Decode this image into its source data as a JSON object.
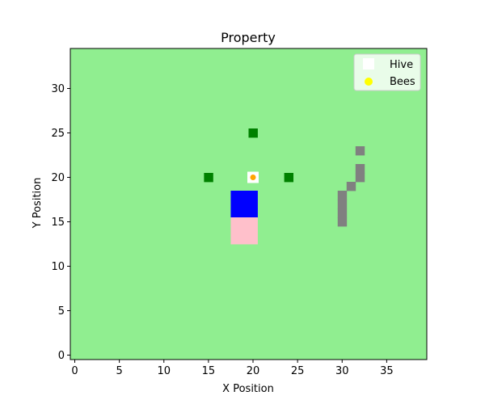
{
  "chart_data": {
    "type": "heatmap",
    "title": "Property",
    "xlabel": "X Position",
    "ylabel": "Y Position",
    "xlim": [
      -0.5,
      39.5
    ],
    "ylim": [
      -0.5,
      34.5
    ],
    "xticks": [
      0,
      5,
      10,
      15,
      20,
      25,
      30,
      35
    ],
    "yticks": [
      0,
      5,
      10,
      15,
      20,
      25,
      30
    ],
    "grid": false,
    "legend_position": "upper-right",
    "background_color": "#90ee90",
    "cells": [
      {
        "x": 20,
        "y": 25,
        "color": "#008000"
      },
      {
        "x": 15,
        "y": 20,
        "color": "#008000"
      },
      {
        "x": 24,
        "y": 20,
        "color": "#008000"
      },
      {
        "x": 18,
        "y": 18,
        "color": "#0000ff"
      },
      {
        "x": 19,
        "y": 18,
        "color": "#0000ff"
      },
      {
        "x": 20,
        "y": 18,
        "color": "#0000ff"
      },
      {
        "x": 18,
        "y": 17,
        "color": "#0000ff"
      },
      {
        "x": 19,
        "y": 17,
        "color": "#0000ff"
      },
      {
        "x": 20,
        "y": 17,
        "color": "#0000ff"
      },
      {
        "x": 18,
        "y": 16,
        "color": "#0000ff"
      },
      {
        "x": 19,
        "y": 16,
        "color": "#0000ff"
      },
      {
        "x": 20,
        "y": 16,
        "color": "#0000ff"
      },
      {
        "x": 18,
        "y": 15,
        "color": "#ffc0cb"
      },
      {
        "x": 19,
        "y": 15,
        "color": "#ffc0cb"
      },
      {
        "x": 20,
        "y": 15,
        "color": "#ffc0cb"
      },
      {
        "x": 18,
        "y": 14,
        "color": "#ffc0cb"
      },
      {
        "x": 19,
        "y": 14,
        "color": "#ffc0cb"
      },
      {
        "x": 20,
        "y": 14,
        "color": "#ffc0cb"
      },
      {
        "x": 18,
        "y": 13,
        "color": "#ffc0cb"
      },
      {
        "x": 19,
        "y": 13,
        "color": "#ffc0cb"
      },
      {
        "x": 20,
        "y": 13,
        "color": "#ffc0cb"
      },
      {
        "x": 32,
        "y": 23,
        "color": "#808080"
      },
      {
        "x": 32,
        "y": 21,
        "color": "#808080"
      },
      {
        "x": 32,
        "y": 20,
        "color": "#808080"
      },
      {
        "x": 31,
        "y": 19,
        "color": "#808080"
      },
      {
        "x": 30,
        "y": 18,
        "color": "#808080"
      },
      {
        "x": 30,
        "y": 17,
        "color": "#808080"
      },
      {
        "x": 30,
        "y": 16,
        "color": "#808080"
      },
      {
        "x": 30,
        "y": 15,
        "color": "#808080"
      }
    ],
    "series": [
      {
        "name": "Hive",
        "marker": "square",
        "color": "#ffffff",
        "points": [
          {
            "x": 20,
            "y": 20
          }
        ]
      },
      {
        "name": "Bees",
        "marker": "circle",
        "color": "#ffa500",
        "legend_color": "#ffff00",
        "points": [
          {
            "x": 20,
            "y": 20
          }
        ]
      }
    ]
  }
}
